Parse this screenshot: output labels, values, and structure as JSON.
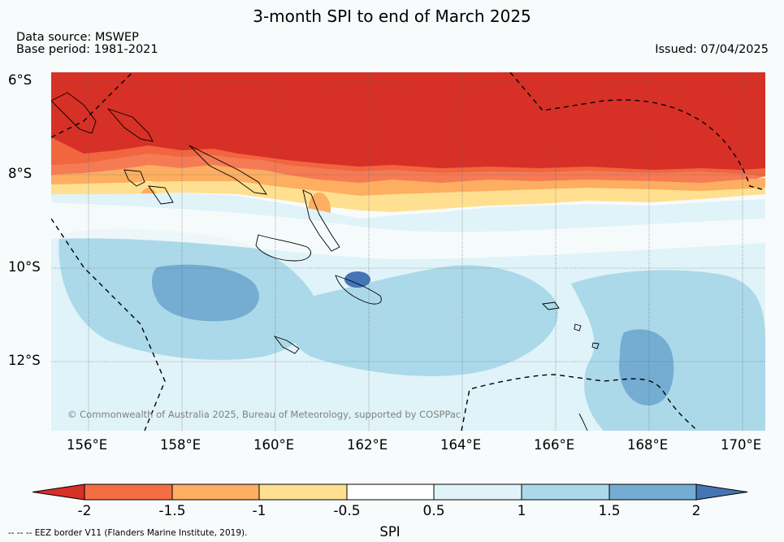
{
  "title": "3-month SPI to end of March 2025",
  "data_source": "Data source: MSWEP",
  "base_period": "Base period: 1981-2021",
  "issued": "Issued: 07/04/2025",
  "lat_labels": [
    "6°S",
    "8°S",
    "10°S",
    "12°S"
  ],
  "lon_labels": [
    "156°E",
    "158°E",
    "160°E",
    "162°E",
    "164°E",
    "166°E",
    "168°E",
    "170°E"
  ],
  "colorbar": {
    "label": "SPI",
    "ticks": [
      "-2",
      "-1.5",
      "-1",
      "-0.5",
      "0.5",
      "1",
      "1.5",
      "2"
    ],
    "colors": [
      "#d73027",
      "#f46d43",
      "#fdae61",
      "#fee090",
      "#ffffff",
      "#e0f3f8",
      "#abd9e9",
      "#74add1",
      "#4575b4"
    ]
  },
  "eez_note": "-- -- -- EEZ border V11 (Flanders Marine Institute, 2019).",
  "credit": "© Commonwealth of Australia 2025, Bureau of Meteorology, supported by COSPPac"
}
